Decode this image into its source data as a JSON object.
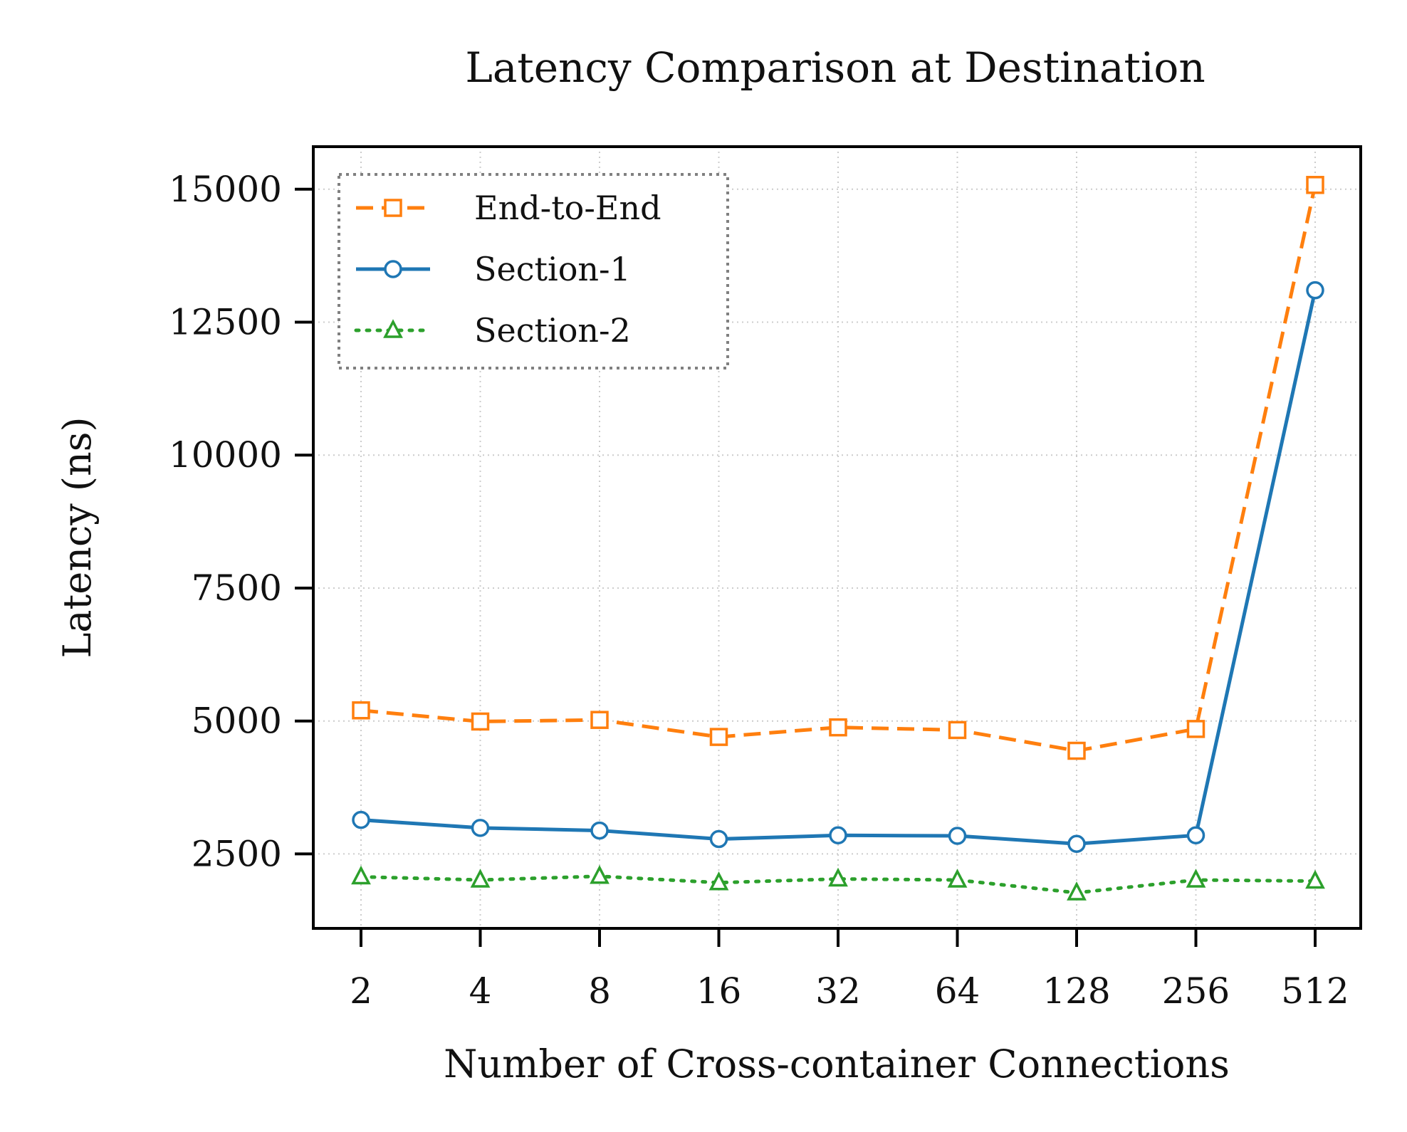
{
  "chart_data": {
    "type": "line",
    "title": "Latency Comparison at Destination",
    "xlabel": "Number of Cross-container Connections",
    "ylabel": "Latency (ns)",
    "categories": [
      "2",
      "4",
      "8",
      "16",
      "32",
      "64",
      "128",
      "256",
      "512"
    ],
    "ylim": [
      1100,
      15800
    ],
    "yticks": [
      2500,
      5000,
      7500,
      10000,
      12500,
      15000
    ],
    "grid": true,
    "legend_position": "top-left",
    "series": [
      {
        "name": "End-to-End",
        "color": "#ff7f0e",
        "line_style": "dashed",
        "marker": "square",
        "values": [
          5200,
          4990,
          5020,
          4700,
          4880,
          4830,
          4440,
          4850,
          15080
        ]
      },
      {
        "name": "Section-1",
        "color": "#1f77b4",
        "line_style": "solid",
        "marker": "circle",
        "values": [
          3140,
          2990,
          2940,
          2780,
          2850,
          2840,
          2690,
          2850,
          13100
        ]
      },
      {
        "name": "Section-2",
        "color": "#2ca02c",
        "line_style": "dotted",
        "marker": "triangle",
        "values": [
          2070,
          2010,
          2080,
          1960,
          2030,
          2010,
          1770,
          2010,
          1990
        ]
      }
    ]
  }
}
